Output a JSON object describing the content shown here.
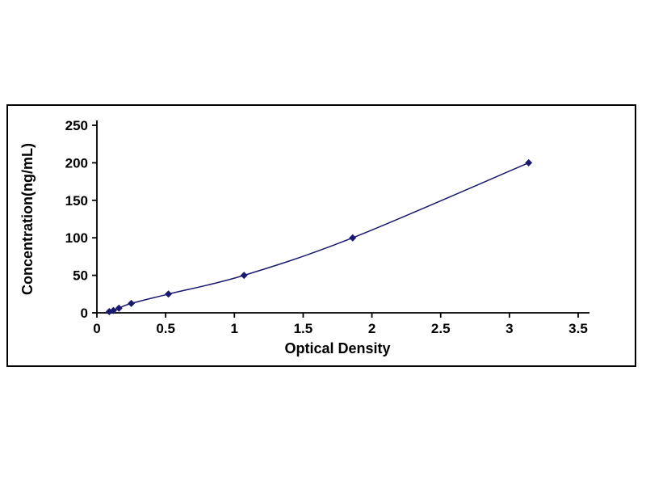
{
  "page": {
    "background": "#ffffff"
  },
  "chart_data": {
    "type": "line",
    "title": "",
    "xlabel": "Optical Density",
    "ylabel": "Concentration(ng/mL)",
    "x": [
      0.09,
      0.12,
      0.16,
      0.25,
      0.52,
      1.07,
      1.86,
      3.14
    ],
    "y": [
      1.56,
      3.13,
      6.25,
      12.5,
      25,
      50,
      100,
      200
    ],
    "xlim": [
      0,
      3.5
    ],
    "ylim": [
      0,
      250
    ],
    "xticks": [
      0,
      0.5,
      1,
      1.5,
      2,
      2.5,
      3,
      3.5
    ],
    "yticks": [
      0,
      50,
      100,
      150,
      200,
      250
    ],
    "marker": "diamond",
    "line_color": "#191970",
    "marker_color": "#191970",
    "axis_color": "#000000",
    "grid": false,
    "legend_position": "none",
    "description": "ELISA standard curve: Concentration (ng/mL) vs Optical Density"
  }
}
